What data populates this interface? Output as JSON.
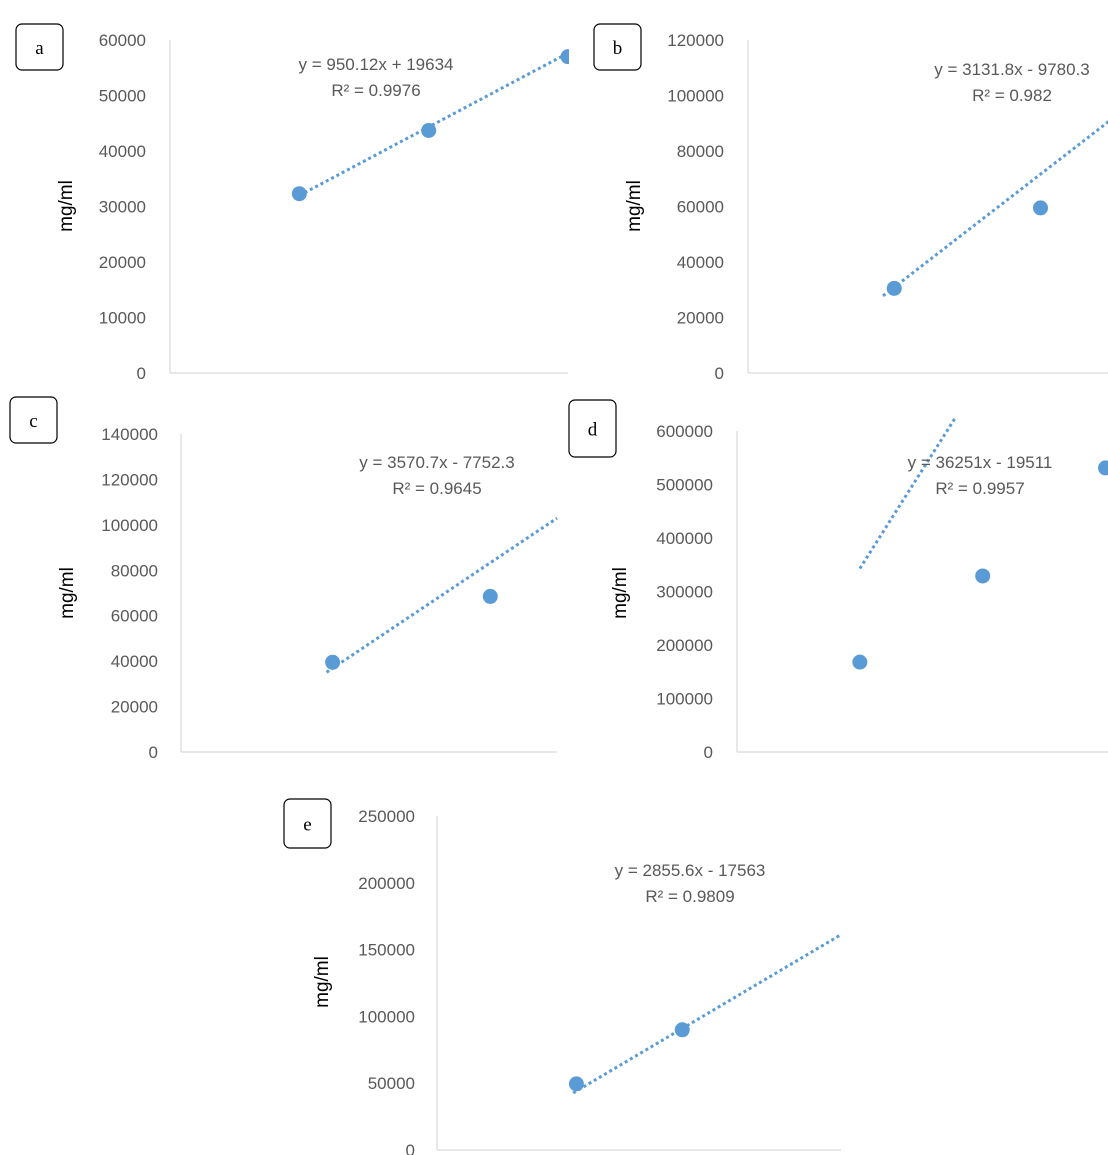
{
  "colors": {
    "marker": "#5b9bd5",
    "trendline": "#5b9bd5",
    "axis": "#d9d9d9",
    "text": "#595959"
  },
  "chart_data": [
    {
      "panel_label": "a",
      "type": "scatter",
      "ylabel": "mg/ml",
      "ylim": [
        0,
        60000
      ],
      "yticks": [
        "0",
        "10000",
        "20000",
        "30000",
        "40000",
        "50000",
        "60000"
      ],
      "grid": false,
      "points": [
        {
          "x": 13,
          "y": 32300
        },
        {
          "x": 26,
          "y": 43700
        },
        {
          "x": 40,
          "y": 57000
        }
      ],
      "trendline": {
        "slope": 950.12,
        "intercept": 19634,
        "x_range": [
          13,
          40
        ],
        "style": "dotted"
      },
      "equation": "y = 950.12x + 19634",
      "r2": "R² = 0.9976"
    },
    {
      "panel_label": "b",
      "type": "scatter",
      "ylabel": "mg/ml",
      "ylim": [
        0,
        120000
      ],
      "yticks": [
        "0",
        "20000",
        "40000",
        "60000",
        "80000",
        "100000",
        "120000"
      ],
      "grid": false,
      "points": [
        {
          "x": 13,
          "y": 30500
        },
        {
          "x": 26,
          "y": 59500
        }
      ],
      "trendline": {
        "slope": 3131.8,
        "intercept": -9780.3,
        "x_range": [
          12,
          41
        ],
        "style": "dotted"
      },
      "equation": "y = 3131.8x - 9780.3",
      "r2": "R² = 0.982"
    },
    {
      "panel_label": "c",
      "type": "scatter",
      "ylabel": "mg/ml",
      "ylim": [
        0,
        140000
      ],
      "yticks": [
        "0",
        "20000",
        "40000",
        "60000",
        "80000",
        "100000",
        "120000",
        "140000"
      ],
      "grid": false,
      "points": [
        {
          "x": 12.5,
          "y": 39500
        },
        {
          "x": 25.5,
          "y": 68500
        }
      ],
      "trendline": {
        "slope": 3570.7,
        "intercept": -7752.3,
        "x_range": [
          12,
          31
        ],
        "style": "dotted"
      },
      "equation": "y = 3570.7x - 7752.3",
      "r2": "R² = 0.9645"
    },
    {
      "panel_label": "d",
      "type": "scatter",
      "ylabel": "mg/ml",
      "ylim": [
        0,
        600000
      ],
      "yticks": [
        "0",
        "100000",
        "200000",
        "300000",
        "400000",
        "500000",
        "600000"
      ],
      "grid": false,
      "points": [
        {
          "x": 10,
          "y": 168000
        },
        {
          "x": 20,
          "y": 329000
        },
        {
          "x": 30,
          "y": 531000
        }
      ],
      "trendline": {
        "slope": 36251,
        "intercept": -19511,
        "x_range": [
          10,
          30
        ],
        "style": "dotted"
      },
      "equation": "y = 36251x - 19511",
      "r2": "R² = 0.9957"
    },
    {
      "panel_label": "e",
      "type": "scatter",
      "ylabel": "mg/ml",
      "ylim": [
        0,
        250000
      ],
      "yticks": [
        "0",
        "50000",
        "100000",
        "150000",
        "200000",
        "250000"
      ],
      "grid": false,
      "points": [
        {
          "x": 21.6,
          "y": 49500
        },
        {
          "x": 38,
          "y": 90000
        }
      ],
      "trendline": {
        "slope": 2855.6,
        "intercept": -17563,
        "x_range": [
          21.1,
          62.6
        ],
        "style": "dotted"
      },
      "equation": "y = 2855.6x - 17563",
      "r2": "R² = 0.9809"
    }
  ]
}
